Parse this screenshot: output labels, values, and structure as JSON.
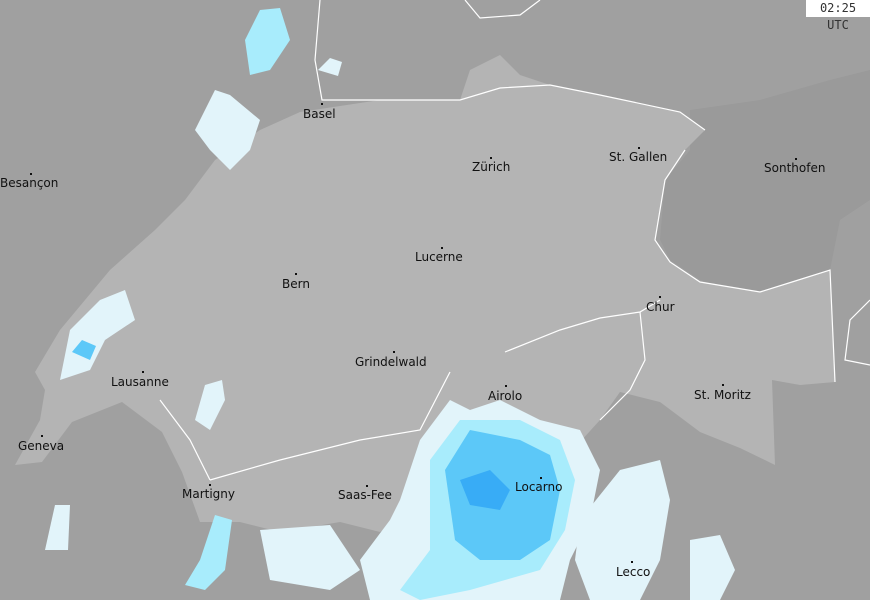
{
  "timestamp": "02:25 UTC",
  "colors": {
    "background": "#a0a0a0",
    "switzerland": "#b4b4b4",
    "austria": "#9a9a9a",
    "border": "#ffffff",
    "rain_very_light": "#e2f4fa",
    "rain_light": "#a8ecfc",
    "rain_moderate": "#5cc8f8",
    "rain_heavy": "#38acf6"
  },
  "cities": [
    {
      "name": "Basel"
    },
    {
      "name": "Besançon"
    },
    {
      "name": "Zürich"
    },
    {
      "name": "St. Gallen"
    },
    {
      "name": "Sonthofen"
    },
    {
      "name": "Lucerne"
    },
    {
      "name": "Bern"
    },
    {
      "name": "Chur"
    },
    {
      "name": "Grindelwald"
    },
    {
      "name": "Lausanne"
    },
    {
      "name": "Airolo"
    },
    {
      "name": "St. Moritz"
    },
    {
      "name": "Geneva"
    },
    {
      "name": "Locarno"
    },
    {
      "name": "Martigny"
    },
    {
      "name": "Saas-Fee"
    },
    {
      "name": "Lecco"
    }
  ]
}
